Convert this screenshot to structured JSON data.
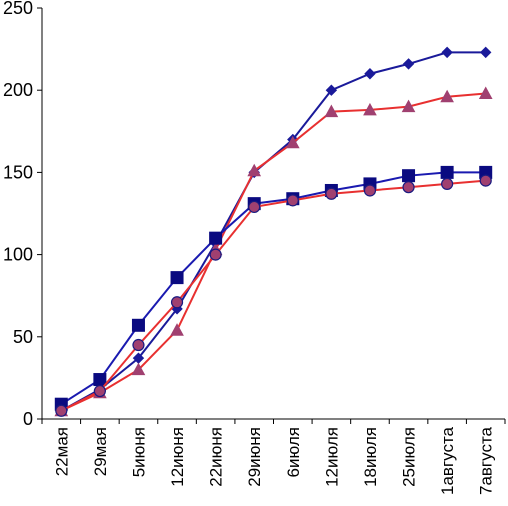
{
  "chart_data": {
    "type": "line",
    "title": "",
    "xlabel": "",
    "ylabel": "",
    "ylim": [
      0,
      250
    ],
    "yticks": [
      0,
      50,
      100,
      150,
      200,
      250
    ],
    "yticks_labels": [
      "0",
      "50",
      "100",
      "150",
      "200",
      "250"
    ],
    "grid": false,
    "legend": "none",
    "categories": [
      "22мая",
      "29мая",
      "5июня",
      "12июня",
      "22июня",
      "29июня",
      "6июля",
      "12июля",
      "18июля",
      "25июля",
      "1августа",
      "7августа"
    ],
    "series": [
      {
        "color": "#1a1a9a",
        "marker": "diamond",
        "values": [
          5,
          18,
          37,
          67,
          107,
          150,
          170,
          200,
          210,
          216,
          223,
          223
        ]
      },
      {
        "color": "#e83030",
        "marker": "triangle",
        "marker_color": "#a04070",
        "values": [
          5,
          16,
          30,
          54,
          103,
          151,
          168,
          187,
          188,
          190,
          196,
          198
        ]
      },
      {
        "color": "#1a1ab0",
        "marker": "square",
        "marker_color": "#0a0a80",
        "values": [
          9,
          24,
          57,
          86,
          110,
          131,
          134,
          139,
          143,
          148,
          150,
          150
        ]
      },
      {
        "color": "#e83030",
        "marker": "circle",
        "marker_color": "#a04070",
        "values": [
          5,
          17,
          45,
          71,
          100,
          129,
          133,
          137,
          139,
          141,
          143,
          145
        ]
      }
    ]
  }
}
